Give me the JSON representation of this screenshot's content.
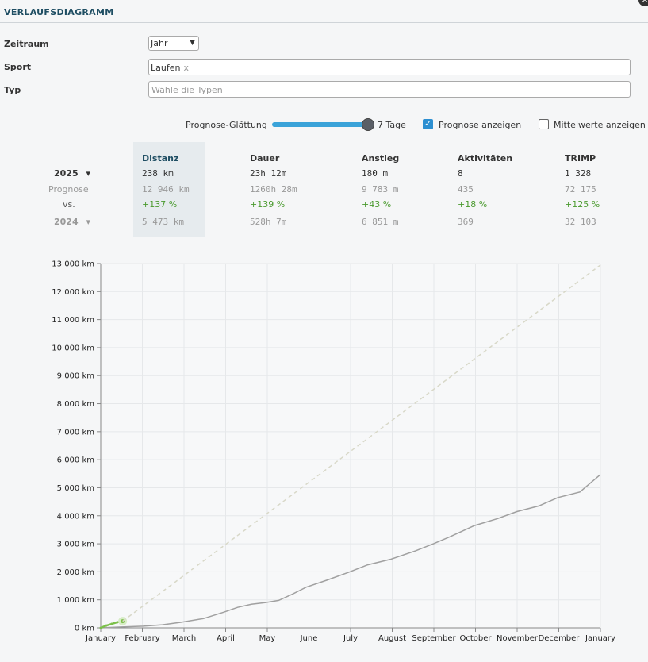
{
  "dialog": {
    "title": "VERLAUFSDIAGRAMM",
    "close_label": "×"
  },
  "filters": {
    "zeitraum": {
      "label": "Zeitraum",
      "value": "Jahr"
    },
    "sport": {
      "label": "Sport",
      "chip": "Laufen",
      "chip_remove": "x"
    },
    "typ": {
      "label": "Typ",
      "placeholder": "Wähle die Typen"
    }
  },
  "controls": {
    "smoothing_label": "Prognose-Glättung",
    "smoothing_value": "7 Tage",
    "show_forecast_label": "Prognose anzeigen",
    "show_forecast_checked": true,
    "show_averages_label": "Mittelwerte anzeigen",
    "show_averages_checked": false,
    "check_glyph": "✓"
  },
  "stats": {
    "columns": [
      "Distanz",
      "Dauer",
      "Anstieg",
      "Aktivitäten",
      "TRIMP"
    ],
    "current": {
      "label": "2025",
      "values": [
        "238 km",
        "23h 12m",
        "180 m",
        "8",
        "1 328"
      ]
    },
    "forecast": {
      "label": "Prognose",
      "values": [
        "12 946 km",
        "1260h 28m",
        "9 783 m",
        "435",
        "72 175"
      ]
    },
    "vs": {
      "label": "vs.",
      "values": [
        "+137 %",
        "+139 %",
        "+43 %",
        "+18 %",
        "+125 %"
      ]
    },
    "previous": {
      "label": "2024",
      "values": [
        "5 473 km",
        "528h 7m",
        "6 851 m",
        "369",
        "32 103"
      ]
    },
    "dropdown_glyph": "▾",
    "colors": {
      "highlight": "#e6ebee",
      "positive": "#4a9a2e",
      "muted": "#999999"
    }
  },
  "chart_data": {
    "type": "line",
    "x_categories": [
      "January",
      "February",
      "March",
      "April",
      "May",
      "June",
      "July",
      "August",
      "September",
      "October",
      "November",
      "December",
      "January"
    ],
    "y_ticks": [
      "0 km",
      "1 000 km",
      "2 000 km",
      "3 000 km",
      "4 000 km",
      "5 000 km",
      "6 000 km",
      "7 000 km",
      "8 000 km",
      "9 000 km",
      "10 000 km",
      "11 000 km",
      "12 000 km",
      "13 000 km"
    ],
    "ylim": [
      0,
      13000
    ],
    "xlim_days": [
      0,
      365
    ],
    "grid": true,
    "series": [
      {
        "role": "previous-year",
        "color": "#a0a0a0",
        "points": [
          [
            0,
            0
          ],
          [
            15,
            30
          ],
          [
            31,
            60
          ],
          [
            45,
            110
          ],
          [
            59,
            200
          ],
          [
            75,
            330
          ],
          [
            90,
            560
          ],
          [
            100,
            730
          ],
          [
            110,
            840
          ],
          [
            120,
            900
          ],
          [
            130,
            980
          ],
          [
            140,
            1200
          ],
          [
            150,
            1450
          ],
          [
            165,
            1700
          ],
          [
            181,
            1980
          ],
          [
            195,
            2250
          ],
          [
            212,
            2450
          ],
          [
            230,
            2750
          ],
          [
            243,
            3000
          ],
          [
            255,
            3250
          ],
          [
            273,
            3650
          ],
          [
            290,
            3900
          ],
          [
            304,
            4150
          ],
          [
            320,
            4350
          ],
          [
            334,
            4650
          ],
          [
            350,
            4850
          ],
          [
            365,
            5473
          ]
        ]
      },
      {
        "role": "current-year",
        "color": "#7cc04b",
        "points": [
          [
            0,
            0
          ],
          [
            4,
            80
          ],
          [
            8,
            140
          ],
          [
            12,
            200
          ],
          [
            16,
            238
          ]
        ]
      },
      {
        "role": "forecast",
        "color": "#d8d8c8",
        "dashed": true,
        "points": [
          [
            16,
            238
          ],
          [
            365,
            12946
          ]
        ]
      }
    ]
  }
}
